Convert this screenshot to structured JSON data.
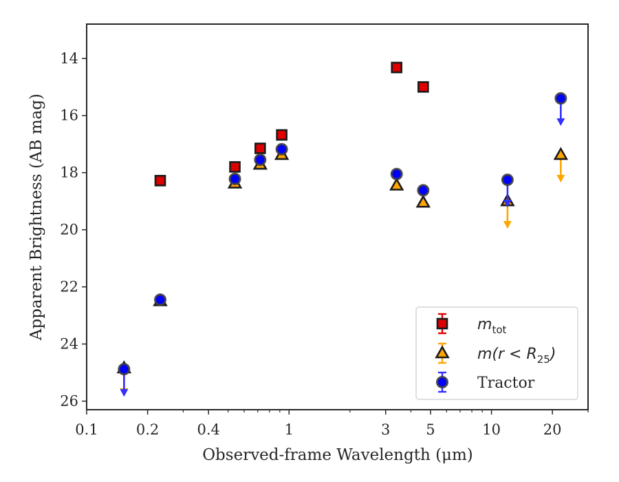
{
  "chart_data": {
    "type": "scatter",
    "title": "",
    "xlabel": "Observed-frame Wavelength (μm)",
    "ylabel": "Apparent Brightness (AB mag)",
    "xscale": "log",
    "xlim": [
      0.1,
      30
    ],
    "ylim": [
      26.3,
      12.8
    ],
    "y_inverted": true,
    "xticks": [
      0.1,
      0.2,
      0.4,
      1,
      3,
      5,
      10,
      20
    ],
    "xtick_labels": [
      "0.1",
      "0.2",
      "0.4",
      "1",
      "3",
      "5",
      "10",
      "20"
    ],
    "yticks": [
      14,
      16,
      18,
      20,
      22,
      24,
      26
    ],
    "ytick_labels": [
      "14",
      "16",
      "18",
      "20",
      "22",
      "24",
      "26"
    ],
    "legend_position": "lower right",
    "series": [
      {
        "key": "mtot",
        "name": "m_tot",
        "legend_main": "m",
        "legend_sub": "tot",
        "marker": "square",
        "color": "#e00000",
        "errcolor": "#e00000",
        "points": [
          {
            "x": 0.231,
            "y": 18.28
          },
          {
            "x": 0.54,
            "y": 17.8
          },
          {
            "x": 0.72,
            "y": 17.15
          },
          {
            "x": 0.92,
            "y": 16.68
          },
          {
            "x": 3.4,
            "y": 14.32
          },
          {
            "x": 4.6,
            "y": 15.0
          }
        ]
      },
      {
        "key": "mr25",
        "name": "m(r<R_25)",
        "legend_main": "m(r < R",
        "legend_sub": "25",
        "legend_tail": ")",
        "marker": "triangle",
        "color": "#ffa500",
        "errcolor": "#ffa500",
        "points": [
          {
            "x": 0.153,
            "y": 24.85,
            "upper_limit": true
          },
          {
            "x": 0.231,
            "y": 22.5
          },
          {
            "x": 0.54,
            "y": 18.38
          },
          {
            "x": 0.72,
            "y": 17.72
          },
          {
            "x": 0.92,
            "y": 17.38
          },
          {
            "x": 3.4,
            "y": 18.45
          },
          {
            "x": 4.6,
            "y": 19.05
          },
          {
            "x": 12.0,
            "y": 19.0,
            "upper_limit": true
          },
          {
            "x": 22.0,
            "y": 17.38,
            "upper_limit": true
          }
        ]
      },
      {
        "key": "tractor",
        "name": "Tractor",
        "legend_main": "Tractor",
        "marker": "circle",
        "color": "#0000ff",
        "errcolor": "#3030ff",
        "points": [
          {
            "x": 0.153,
            "y": 24.88,
            "upper_limit": true
          },
          {
            "x": 0.231,
            "y": 22.45
          },
          {
            "x": 0.54,
            "y": 18.22
          },
          {
            "x": 0.72,
            "y": 17.55
          },
          {
            "x": 0.92,
            "y": 17.18
          },
          {
            "x": 3.4,
            "y": 18.05
          },
          {
            "x": 4.6,
            "y": 18.62
          },
          {
            "x": 12.0,
            "y": 18.25,
            "upper_limit": true
          },
          {
            "x": 22.0,
            "y": 15.4,
            "upper_limit": true
          }
        ]
      }
    ]
  }
}
